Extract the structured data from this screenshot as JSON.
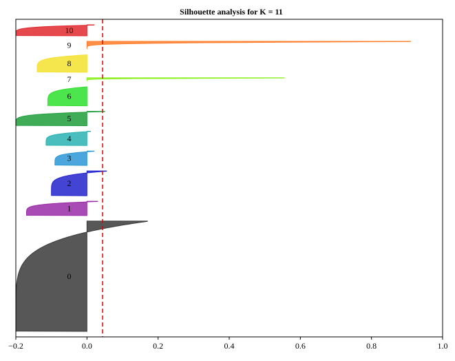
{
  "chart_data": {
    "type": "area",
    "title": "Silhouette analysis for K = 11",
    "xlabel": "",
    "ylabel": "",
    "xlim": [
      -0.2,
      1.0
    ],
    "x_ticks": [
      -0.2,
      0.0,
      0.2,
      0.4,
      0.6,
      0.8,
      1.0
    ],
    "x_tick_labels": [
      "−0.2",
      "0.0",
      "0.2",
      "0.4",
      "0.6",
      "0.8",
      "1.0"
    ],
    "y_ticks_visible": false,
    "grid": false,
    "average_silhouette_score": 0.044,
    "average_line_color": "#e00000",
    "average_line_style": "dashed",
    "clusters": [
      {
        "label": "0",
        "color": "#3a3a3a",
        "size": 200,
        "min": -0.2,
        "max": 0.17
      },
      {
        "label": "1",
        "color": "#9a2ca8",
        "size": 26,
        "min": -0.17,
        "max": 0.03
      },
      {
        "label": "2",
        "color": "#2323cc",
        "size": 45,
        "min": -0.1,
        "max": 0.055
      },
      {
        "label": "3",
        "color": "#2a97d6",
        "size": 26,
        "min": -0.09,
        "max": 0.02
      },
      {
        "label": "4",
        "color": "#2ab3b3",
        "size": 26,
        "min": -0.115,
        "max": 0.01
      },
      {
        "label": "5",
        "color": "#1e9e3a",
        "size": 26,
        "min": -0.2,
        "max": 0.05
      },
      {
        "label": "6",
        "color": "#2ee02e",
        "size": 35,
        "min": -0.11,
        "max": 0.0
      },
      {
        "label": "7",
        "color": "#8af01e",
        "size": 6,
        "min": 0.0,
        "max": 0.555
      },
      {
        "label": "8",
        "color": "#f5e22e",
        "size": 32,
        "min": -0.14,
        "max": 0.0
      },
      {
        "label": "9",
        "color": "#ff7c2a",
        "size": 14,
        "min": 0.0,
        "max": 0.91
      },
      {
        "label": "10",
        "color": "#e0282e",
        "size": 20,
        "min": -0.2,
        "max": 0.02
      }
    ]
  }
}
